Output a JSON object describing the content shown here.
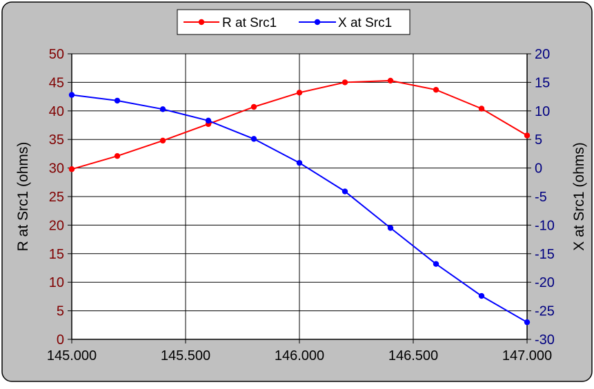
{
  "chart_data": {
    "type": "line",
    "title": "",
    "xlabel": "",
    "x": [
      145.0,
      145.2,
      145.4,
      145.6,
      145.8,
      146.0,
      146.2,
      146.4,
      146.6,
      146.8,
      147.0
    ],
    "x_ticks": [
      "145.000",
      "145.500",
      "146.000",
      "146.500",
      "147.000"
    ],
    "x_tick_values": [
      145.0,
      145.5,
      146.0,
      146.5,
      147.0
    ],
    "xlim": [
      145.0,
      147.0
    ],
    "y_left": {
      "label": "R at Src1 (ohms)",
      "lim": [
        0,
        50
      ],
      "ticks": [
        "0",
        "5",
        "10",
        "15",
        "20",
        "25",
        "30",
        "35",
        "40",
        "45",
        "50"
      ],
      "tick_values": [
        0,
        5,
        10,
        15,
        20,
        25,
        30,
        35,
        40,
        45,
        50
      ],
      "color": "#800000"
    },
    "y_right": {
      "label": "X at Src1 (ohms)",
      "lim": [
        -30,
        20
      ],
      "ticks": [
        "-30",
        "-25",
        "-20",
        "-15",
        "-10",
        "-5",
        "0",
        "5",
        "10",
        "15",
        "20"
      ],
      "tick_values": [
        -30,
        -25,
        -20,
        -15,
        -10,
        -5,
        0,
        5,
        10,
        15,
        20
      ],
      "color": "#000080"
    },
    "series": [
      {
        "name": "R at Src1",
        "axis": "left",
        "color": "#ff0000",
        "values": [
          29.8,
          32.1,
          34.8,
          37.7,
          40.7,
          43.2,
          45.0,
          45.3,
          43.7,
          40.4,
          35.7
        ]
      },
      {
        "name": "X at Src1",
        "axis": "right",
        "color": "#0000ff",
        "values": [
          12.8,
          11.8,
          10.3,
          8.3,
          5.1,
          0.9,
          -4.1,
          -10.5,
          -16.8,
          -22.4,
          -27.0
        ]
      }
    ],
    "grid": true,
    "legend": "top-center"
  }
}
